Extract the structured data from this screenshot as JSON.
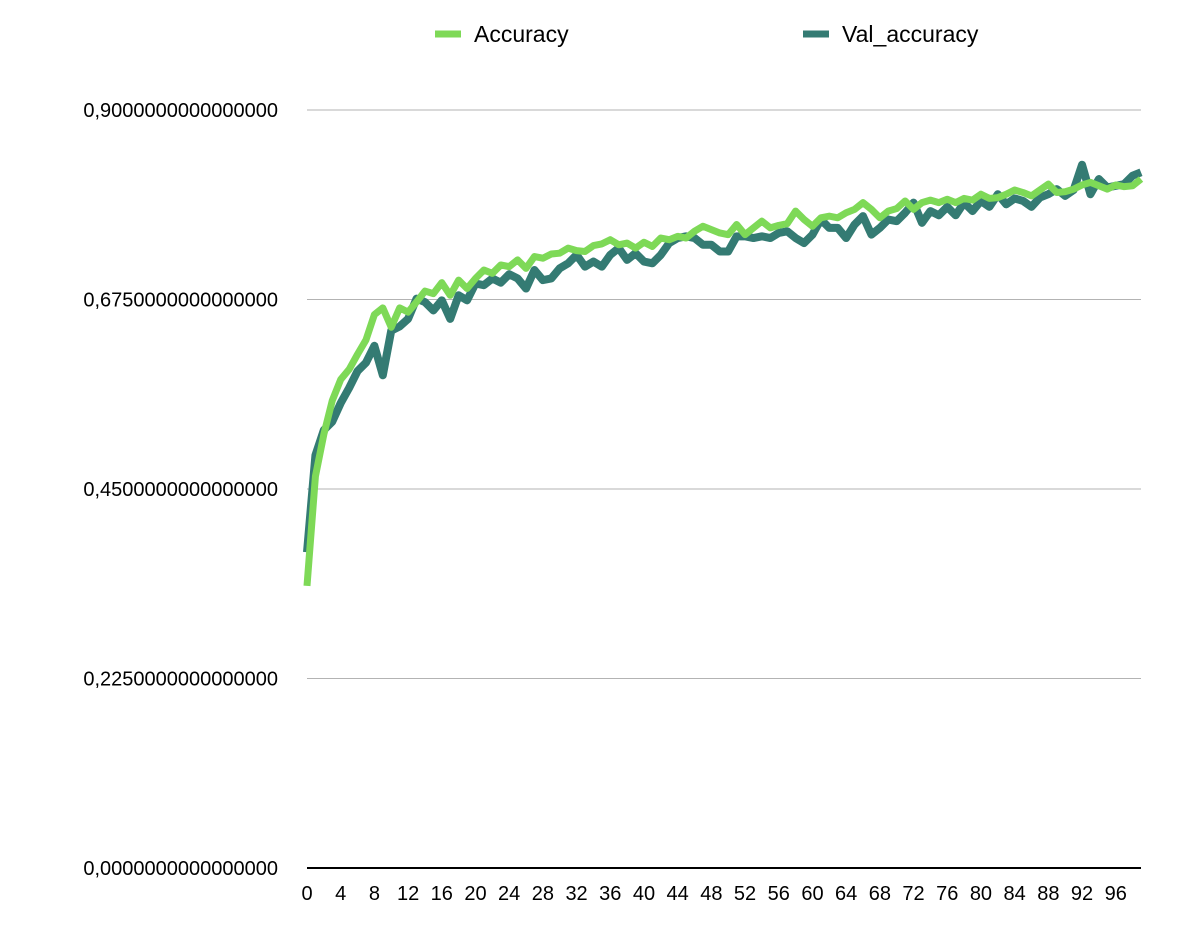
{
  "chart_data": {
    "type": "line",
    "title": "",
    "xlabel": "",
    "ylabel": "",
    "xlim": [
      0,
      99
    ],
    "ylim": [
      0,
      0.9
    ],
    "grid": true,
    "legend_placement": "top-center",
    "y_ticks": [
      {
        "value": 0,
        "label": "0,0000000000000000"
      },
      {
        "value": 0.225,
        "label": "0,2250000000000000"
      },
      {
        "value": 0.45,
        "label": "0,4500000000000000"
      },
      {
        "value": 0.675,
        "label": "0,6750000000000000"
      },
      {
        "value": 0.9,
        "label": "0,9000000000000000"
      }
    ],
    "x_ticks": [
      0,
      4,
      8,
      12,
      16,
      20,
      24,
      28,
      32,
      36,
      40,
      44,
      48,
      52,
      56,
      60,
      64,
      68,
      72,
      76,
      80,
      84,
      88,
      92,
      96
    ],
    "x": [
      0,
      1,
      2,
      3,
      4,
      5,
      6,
      7,
      8,
      9,
      10,
      11,
      12,
      13,
      14,
      15,
      16,
      17,
      18,
      19,
      20,
      21,
      22,
      23,
      24,
      25,
      26,
      27,
      28,
      29,
      30,
      31,
      32,
      33,
      34,
      35,
      36,
      37,
      38,
      39,
      40,
      41,
      42,
      43,
      44,
      45,
      46,
      47,
      48,
      49,
      50,
      51,
      52,
      53,
      54,
      55,
      56,
      57,
      58,
      59,
      60,
      61,
      62,
      63,
      64,
      65,
      66,
      67,
      68,
      69,
      70,
      71,
      72,
      73,
      74,
      75,
      76,
      77,
      78,
      79,
      80,
      81,
      82,
      83,
      84,
      85,
      86,
      87,
      88,
      89,
      90,
      91,
      92,
      93,
      94,
      95,
      96,
      97,
      98,
      99
    ],
    "series": [
      {
        "name": "Accuracy",
        "color": "#7ed957",
        "values": [
          0.335,
          0.465,
          0.515,
          0.555,
          0.58,
          0.592,
          0.61,
          0.627,
          0.657,
          0.665,
          0.642,
          0.665,
          0.66,
          0.672,
          0.685,
          0.682,
          0.695,
          0.68,
          0.698,
          0.688,
          0.7,
          0.71,
          0.706,
          0.716,
          0.714,
          0.722,
          0.712,
          0.726,
          0.724,
          0.729,
          0.73,
          0.736,
          0.733,
          0.732,
          0.739,
          0.741,
          0.746,
          0.74,
          0.742,
          0.736,
          0.743,
          0.738,
          0.748,
          0.746,
          0.75,
          0.748,
          0.756,
          0.762,
          0.758,
          0.754,
          0.752,
          0.764,
          0.752,
          0.76,
          0.768,
          0.76,
          0.763,
          0.765,
          0.78,
          0.77,
          0.762,
          0.772,
          0.774,
          0.772,
          0.778,
          0.782,
          0.79,
          0.782,
          0.772,
          0.78,
          0.783,
          0.792,
          0.782,
          0.79,
          0.793,
          0.79,
          0.794,
          0.79,
          0.795,
          0.793,
          0.8,
          0.795,
          0.796,
          0.8,
          0.805,
          0.802,
          0.798,
          0.805,
          0.812,
          0.802,
          0.803,
          0.806,
          0.811,
          0.814,
          0.81,
          0.806,
          0.811,
          0.809,
          0.81,
          0.818
        ]
      },
      {
        "name": "Val_accuracy",
        "color": "#347b73",
        "values": [
          0.375,
          0.49,
          0.52,
          0.53,
          0.552,
          0.57,
          0.59,
          0.6,
          0.62,
          0.585,
          0.638,
          0.643,
          0.652,
          0.676,
          0.672,
          0.662,
          0.674,
          0.652,
          0.68,
          0.674,
          0.694,
          0.692,
          0.7,
          0.695,
          0.705,
          0.7,
          0.688,
          0.71,
          0.698,
          0.7,
          0.712,
          0.718,
          0.728,
          0.714,
          0.72,
          0.714,
          0.728,
          0.736,
          0.722,
          0.73,
          0.72,
          0.718,
          0.728,
          0.742,
          0.748,
          0.75,
          0.748,
          0.74,
          0.74,
          0.732,
          0.732,
          0.75,
          0.75,
          0.748,
          0.75,
          0.748,
          0.754,
          0.756,
          0.748,
          0.742,
          0.752,
          0.77,
          0.76,
          0.76,
          0.748,
          0.764,
          0.774,
          0.752,
          0.76,
          0.77,
          0.768,
          0.778,
          0.79,
          0.766,
          0.78,
          0.775,
          0.785,
          0.775,
          0.79,
          0.78,
          0.792,
          0.785,
          0.8,
          0.788,
          0.795,
          0.792,
          0.785,
          0.796,
          0.8,
          0.806,
          0.798,
          0.805,
          0.835,
          0.8,
          0.818,
          0.808,
          0.81,
          0.812,
          0.822,
          0.826
        ]
      }
    ]
  }
}
